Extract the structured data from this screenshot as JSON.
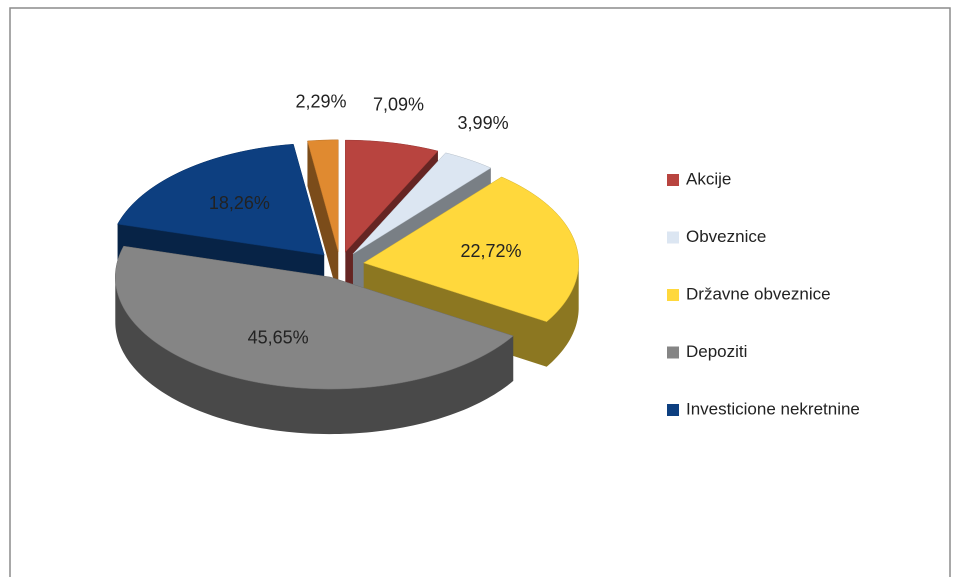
{
  "chart_data": {
    "type": "pie",
    "categories": [
      "Akcije",
      "Obveznice",
      "Državne obveznice",
      "Depoziti",
      "Investicione nekretnine",
      null
    ],
    "values": [
      7.09,
      3.99,
      22.72,
      45.65,
      18.26,
      2.29
    ],
    "value_labels": [
      "7,09%",
      "3,99%",
      "22,72%",
      "45,65%",
      "18,26%",
      "2,29%"
    ],
    "colors": [
      "#b8443f",
      "#dce6f2",
      "#ffd83c",
      "#858585",
      "#0d3f80",
      "#e08a30"
    ],
    "legend": "right"
  }
}
